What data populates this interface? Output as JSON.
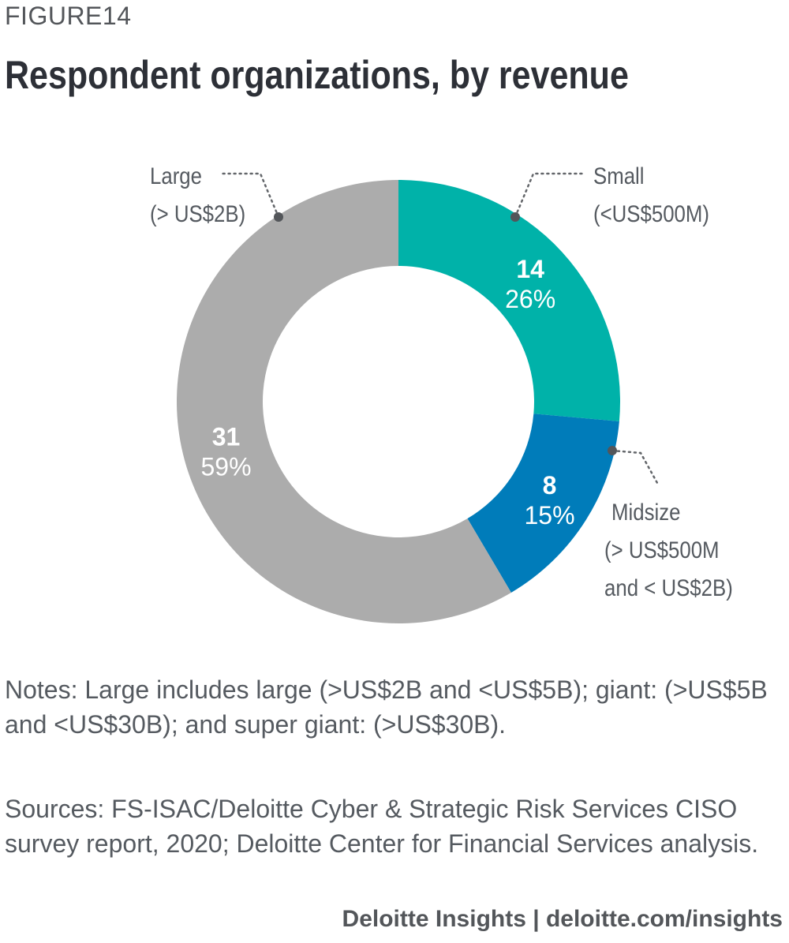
{
  "figure_label": "FIGURE14",
  "title": "Respondent organizations, by revenue",
  "chart_data": {
    "type": "pie",
    "variant": "donut",
    "title": "Respondent organizations, by revenue",
    "slices": [
      {
        "name": "Small",
        "label_line1": "Small",
        "label_line2": "(<US$500M)",
        "label_line3": "",
        "count": "14",
        "value": 14,
        "percent": "26%",
        "color": "#00b2a9"
      },
      {
        "name": "Midsize",
        "label_line1": "Midsize",
        "label_line2": "(> US$500M",
        "label_line3": "and < US$2B)",
        "count": "8",
        "value": 8,
        "percent": "15%",
        "color": "#007cba"
      },
      {
        "name": "Large",
        "label_line1": "Large",
        "label_line2": "(> US$2B)",
        "label_line3": "",
        "count": "31",
        "value": 31,
        "percent": "59%",
        "color": "#acacac"
      }
    ],
    "start": "12 o'clock",
    "direction": "clockwise"
  },
  "notes": "Notes: Large includes large (>US$2B and <US$5B); giant: (>US$5B and <US$30B); and super giant: (>US$30B).",
  "sources": "Sources: FS-ISAC/Deloitte Cyber & Strategic Risk Services CISO survey report, 2020; Deloitte Center for Financial Services analysis.",
  "footer": "Deloitte Insights | deloitte.com/insights"
}
